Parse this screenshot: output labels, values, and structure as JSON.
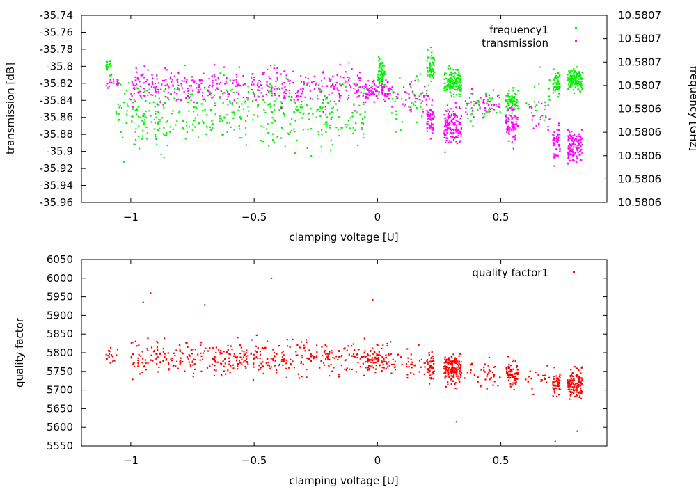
{
  "chart_data": [
    {
      "type": "scatter",
      "title": "",
      "xlabel": "clamping voltage [U]",
      "ylabel": "transmission [dB]",
      "y2label": "frequency [GHz]",
      "xlim": [
        -1.2,
        0.93
      ],
      "ylim": [
        -35.96,
        -35.74
      ],
      "y2lim": [
        10.5806,
        10.5807
      ],
      "xticks": [
        {
          "v": -1,
          "label": "−1"
        },
        {
          "v": -0.5,
          "label": "−0.5"
        },
        {
          "v": 0,
          "label": "0"
        },
        {
          "v": 0.5,
          "label": "0.5"
        }
      ],
      "yticks": [
        {
          "v": -35.96,
          "label": "-35.96"
        },
        {
          "v": -35.94,
          "label": "-35.94"
        },
        {
          "v": -35.92,
          "label": "-35.92"
        },
        {
          "v": -35.9,
          "label": "-35.9"
        },
        {
          "v": -35.88,
          "label": "-35.88"
        },
        {
          "v": -35.86,
          "label": "-35.86"
        },
        {
          "v": -35.84,
          "label": "-35.84"
        },
        {
          "v": -35.82,
          "label": "-35.82"
        },
        {
          "v": -35.8,
          "label": "-35.8"
        },
        {
          "v": -35.78,
          "label": "-35.78"
        },
        {
          "v": -35.76,
          "label": "-35.76"
        },
        {
          "v": -35.74,
          "label": "-35.74"
        }
      ],
      "y2ticks": [
        "10.5806",
        "10.5806",
        "10.5806",
        "10.5806",
        "10.5806",
        "10.5807",
        "10.5807",
        "10.5807",
        "10.5807"
      ],
      "legend": [
        "frequency1",
        "transmission"
      ],
      "series": [
        {
          "name": "frequency1",
          "color": "#00ee00",
          "axis": "y2",
          "clusters": [
            {
              "x": [
                -1.1,
                -1.08
              ],
              "cy": -35.8,
              "sy": 0.01,
              "n": 18
            },
            {
              "x": [
                -1.06,
                -0.85
              ],
              "cy": -35.86,
              "sy": 0.04,
              "n": 120
            },
            {
              "x": [
                -0.85,
                -0.05
              ],
              "cy": -35.855,
              "sy": 0.04,
              "n": 330
            },
            {
              "x": [
                0.0,
                0.03
              ],
              "cy": -35.81,
              "sy": 0.02,
              "n": 70
            },
            {
              "x": [
                0.05,
                0.2
              ],
              "cy": -35.84,
              "sy": 0.03,
              "n": 40
            },
            {
              "x": [
                0.2,
                0.23
              ],
              "cy": -35.8,
              "sy": 0.018,
              "n": 55
            },
            {
              "x": [
                0.27,
                0.34
              ],
              "cy": -35.82,
              "sy": 0.015,
              "n": 150
            },
            {
              "x": [
                0.35,
                0.5
              ],
              "cy": -35.85,
              "sy": 0.02,
              "n": 40
            },
            {
              "x": [
                0.52,
                0.57
              ],
              "cy": -35.84,
              "sy": 0.015,
              "n": 70
            },
            {
              "x": [
                0.6,
                0.7
              ],
              "cy": -35.84,
              "sy": 0.03,
              "n": 20
            },
            {
              "x": [
                0.71,
                0.74
              ],
              "cy": -35.82,
              "sy": 0.015,
              "n": 50
            },
            {
              "x": [
                0.77,
                0.83
              ],
              "cy": -35.815,
              "sy": 0.012,
              "n": 120
            }
          ]
        },
        {
          "name": "transmission",
          "color": "#ff00ff",
          "axis": "y",
          "clusters": [
            {
              "x": [
                -1.1,
                -1.05
              ],
              "cy": -35.82,
              "sy": 0.01,
              "n": 18
            },
            {
              "x": [
                -1.0,
                -0.05
              ],
              "cy": -35.825,
              "sy": 0.02,
              "n": 420
            },
            {
              "x": [
                -0.05,
                0.05
              ],
              "cy": -35.83,
              "sy": 0.012,
              "n": 90
            },
            {
              "x": [
                0.05,
                0.2
              ],
              "cy": -35.835,
              "sy": 0.015,
              "n": 40
            },
            {
              "x": [
                0.2,
                0.23
              ],
              "cy": -35.86,
              "sy": 0.02,
              "n": 55
            },
            {
              "x": [
                0.27,
                0.34
              ],
              "cy": -35.87,
              "sy": 0.022,
              "n": 150
            },
            {
              "x": [
                0.35,
                0.5
              ],
              "cy": -35.845,
              "sy": 0.015,
              "n": 40
            },
            {
              "x": [
                0.52,
                0.57
              ],
              "cy": -35.87,
              "sy": 0.02,
              "n": 70
            },
            {
              "x": [
                0.6,
                0.7
              ],
              "cy": -35.86,
              "sy": 0.02,
              "n": 20
            },
            {
              "x": [
                0.71,
                0.74
              ],
              "cy": -35.89,
              "sy": 0.02,
              "n": 50
            },
            {
              "x": [
                0.77,
                0.83
              ],
              "cy": -35.895,
              "sy": 0.02,
              "n": 120
            }
          ]
        }
      ]
    },
    {
      "type": "scatter",
      "title": "",
      "xlabel": "clamping voltage [U]",
      "ylabel": "quality factor",
      "xlim": [
        -1.2,
        0.93
      ],
      "ylim": [
        5550,
        6050
      ],
      "xticks": [
        {
          "v": -1,
          "label": "−1"
        },
        {
          "v": -0.5,
          "label": "−0.5"
        },
        {
          "v": 0,
          "label": "0"
        },
        {
          "v": 0.5,
          "label": "0.5"
        }
      ],
      "yticks": [
        {
          "v": 5550,
          "label": "5550"
        },
        {
          "v": 5600,
          "label": "5600"
        },
        {
          "v": 5650,
          "label": "5650"
        },
        {
          "v": 5700,
          "label": "5700"
        },
        {
          "v": 5750,
          "label": "5750"
        },
        {
          "v": 5800,
          "label": "5800"
        },
        {
          "v": 5850,
          "label": "5850"
        },
        {
          "v": 5900,
          "label": "5900"
        },
        {
          "v": 5950,
          "label": "5950"
        },
        {
          "v": 6000,
          "label": "6000"
        },
        {
          "v": 6050,
          "label": "6050"
        }
      ],
      "legend": [
        "quality factor1"
      ],
      "series": [
        {
          "name": "quality factor1",
          "color": "#ff0000",
          "clusters": [
            {
              "x": [
                -1.1,
                -1.05
              ],
              "cy": 5790,
              "sy": 25,
              "n": 18
            },
            {
              "x": [
                -1.0,
                -0.05
              ],
              "cy": 5785,
              "sy": 45,
              "n": 420
            },
            {
              "x": [
                -0.05,
                0.05
              ],
              "cy": 5780,
              "sy": 35,
              "n": 90
            },
            {
              "x": [
                0.05,
                0.2
              ],
              "cy": 5770,
              "sy": 40,
              "n": 40
            },
            {
              "x": [
                0.2,
                0.23
              ],
              "cy": 5760,
              "sy": 40,
              "n": 55
            },
            {
              "x": [
                0.27,
                0.34
              ],
              "cy": 5755,
              "sy": 40,
              "n": 150
            },
            {
              "x": [
                0.35,
                0.5
              ],
              "cy": 5740,
              "sy": 40,
              "n": 40
            },
            {
              "x": [
                0.52,
                0.57
              ],
              "cy": 5740,
              "sy": 35,
              "n": 70
            },
            {
              "x": [
                0.6,
                0.7
              ],
              "cy": 5730,
              "sy": 40,
              "n": 20
            },
            {
              "x": [
                0.71,
                0.74
              ],
              "cy": 5720,
              "sy": 35,
              "n": 50
            },
            {
              "x": [
                0.77,
                0.83
              ],
              "cy": 5720,
              "sy": 40,
              "n": 120
            }
          ]
        }
      ],
      "outliers": [
        {
          "x": -0.43,
          "y": 6000
        },
        {
          "x": -0.92,
          "y": 5960
        },
        {
          "x": -0.95,
          "y": 5935
        },
        {
          "x": -0.7,
          "y": 5928
        },
        {
          "x": 0.72,
          "y": 5562
        },
        {
          "x": 0.81,
          "y": 5590
        },
        {
          "x": -0.02,
          "y": 5942
        },
        {
          "x": 0.32,
          "y": 5615
        }
      ]
    }
  ]
}
